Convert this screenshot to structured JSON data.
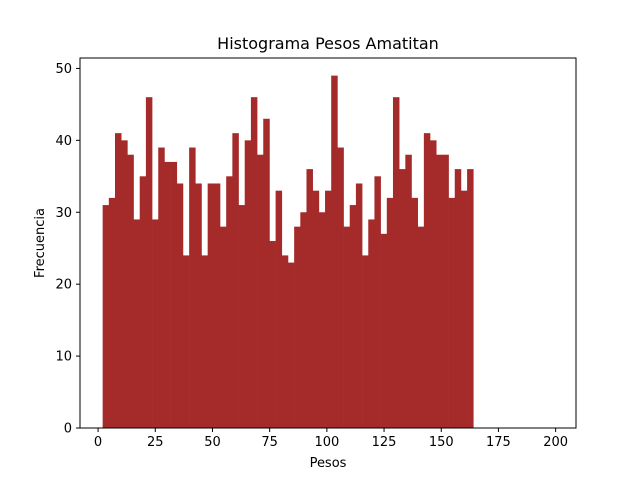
{
  "chart_data": {
    "type": "bar",
    "title": "Histograma Pesos Amatitan",
    "xlabel": "Pesos",
    "ylabel": "Frecuencia",
    "xlim": [
      -7.9,
      208.9
    ],
    "ylim": [
      0,
      51.45
    ],
    "xticks": [
      0,
      25,
      50,
      75,
      100,
      125,
      150,
      175,
      200
    ],
    "yticks": [
      0,
      10,
      20,
      30,
      40,
      50
    ],
    "grid": false,
    "bar_color": "#a52a2a",
    "bin_start": 2,
    "bin_width": 2.7,
    "values": [
      31,
      32,
      41,
      40,
      38,
      29,
      35,
      46,
      29,
      39,
      37,
      37,
      34,
      24,
      39,
      34,
      24,
      34,
      34,
      28,
      35,
      41,
      31,
      40,
      46,
      38,
      43,
      26,
      33,
      24,
      23,
      28,
      30,
      36,
      33,
      30,
      33,
      49,
      39,
      28,
      31,
      34,
      24,
      29,
      35,
      27,
      32,
      46,
      36,
      38,
      32,
      28,
      41,
      40,
      38,
      38,
      32,
      36,
      33,
      36
    ]
  }
}
